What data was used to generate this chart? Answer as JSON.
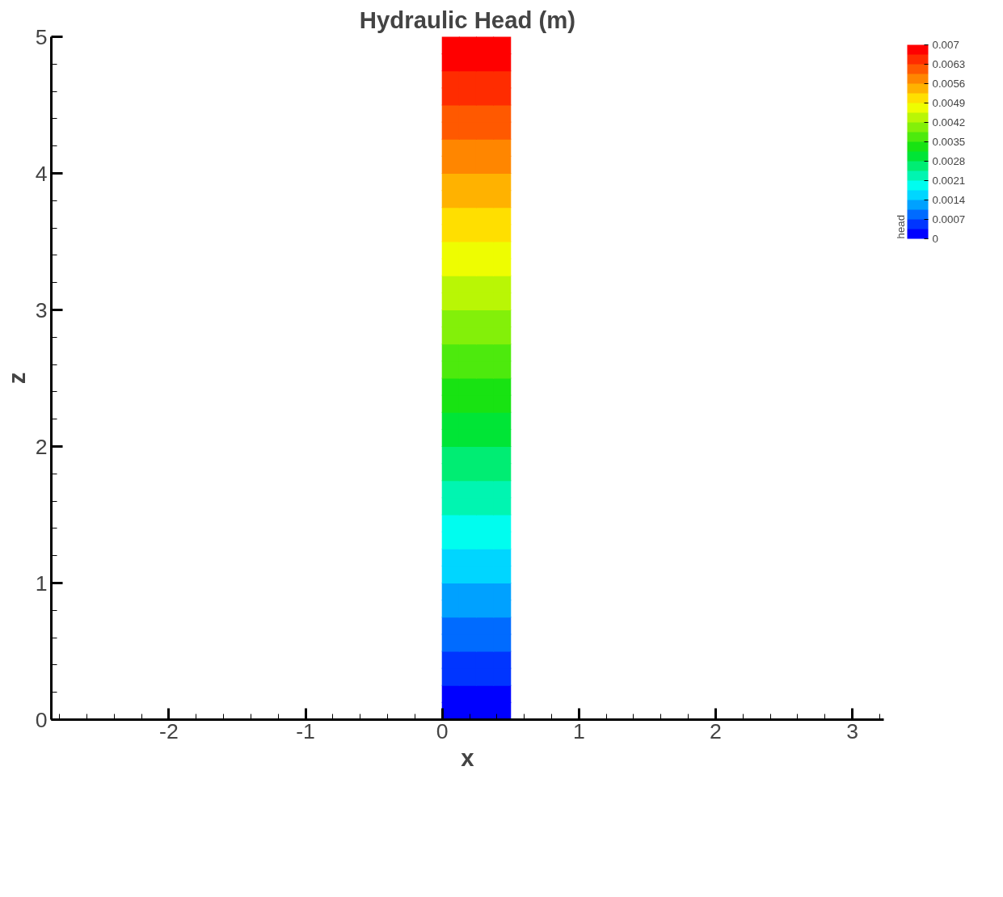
{
  "chart_data": {
    "type": "scatter",
    "marker": "square",
    "title": "Hydraulic Head (m)",
    "xlabel": "x",
    "ylabel": "z",
    "clabel": "head",
    "x": [
      0.0625,
      0.1875,
      0.3125,
      0.4375,
      0.0625,
      0.1875,
      0.3125,
      0.4375,
      0.0625,
      0.1875,
      0.3125,
      0.4375,
      0.0625,
      0.1875,
      0.3125,
      0.4375,
      0.0625,
      0.1875,
      0.3125,
      0.4375,
      0.0625,
      0.1875,
      0.3125,
      0.4375,
      0.0625,
      0.1875,
      0.3125,
      0.4375,
      0.0625,
      0.1875,
      0.3125,
      0.4375,
      0.0625,
      0.1875,
      0.3125,
      0.4375,
      0.0625,
      0.1875,
      0.3125,
      0.4375,
      0.0625,
      0.1875,
      0.3125,
      0.4375,
      0.0625,
      0.1875,
      0.3125,
      0.4375,
      0.0625,
      0.1875,
      0.3125,
      0.4375,
      0.0625,
      0.1875,
      0.3125,
      0.4375,
      0.0625,
      0.1875,
      0.3125,
      0.4375,
      0.0625,
      0.1875,
      0.3125,
      0.4375,
      0.0625,
      0.1875,
      0.3125,
      0.4375,
      0.0625,
      0.1875,
      0.3125,
      0.4375,
      0.0625,
      0.1875,
      0.3125,
      0.4375,
      0.0625,
      0.1875,
      0.3125,
      0.4375,
      0.0625,
      0.1875,
      0.3125,
      0.4375,
      0.0625,
      0.1875,
      0.3125,
      0.4375,
      0.0625,
      0.1875,
      0.3125,
      0.4375,
      0.0625,
      0.1875,
      0.3125,
      0.4375,
      0.0625,
      0.1875,
      0.3125,
      0.4375,
      0.0625,
      0.1875,
      0.3125,
      0.4375,
      0.0625,
      0.1875,
      0.3125,
      0.4375,
      0.0625,
      0.1875,
      0.3125,
      0.4375,
      0.0625,
      0.1875,
      0.3125,
      0.4375,
      0.0625,
      0.1875,
      0.3125,
      0.4375,
      0.0625,
      0.1875,
      0.3125,
      0.4375,
      0.0625,
      0.1875,
      0.3125,
      0.4375,
      0.0625,
      0.1875,
      0.3125,
      0.4375,
      0.0625,
      0.1875,
      0.3125,
      0.4375,
      0.0625,
      0.1875,
      0.3125,
      0.4375,
      0.0625,
      0.1875,
      0.3125,
      0.4375,
      0.0625,
      0.1875,
      0.3125,
      0.4375,
      0.0625,
      0.1875,
      0.3125,
      0.4375,
      0.0625,
      0.1875,
      0.3125,
      0.4375,
      0.0625,
      0.1875,
      0.3125,
      0.4375
    ],
    "values": [
      0.0625,
      0.0625,
      0.0625,
      0.0625,
      0.1875,
      0.1875,
      0.1875,
      0.1875,
      0.3125,
      0.3125,
      0.3125,
      0.3125,
      0.4375,
      0.4375,
      0.4375,
      0.4375,
      0.5625,
      0.5625,
      0.5625,
      0.5625,
      0.6875,
      0.6875,
      0.6875,
      0.6875,
      0.8125,
      0.8125,
      0.8125,
      0.8125,
      0.9375,
      0.9375,
      0.9375,
      0.9375,
      1.0625,
      1.0625,
      1.0625,
      1.0625,
      1.1875,
      1.1875,
      1.1875,
      1.1875,
      1.3125,
      1.3125,
      1.3125,
      1.3125,
      1.4375,
      1.4375,
      1.4375,
      1.4375,
      1.5625,
      1.5625,
      1.5625,
      1.5625,
      1.6875,
      1.6875,
      1.6875,
      1.6875,
      1.8125,
      1.8125,
      1.8125,
      1.8125,
      1.9375,
      1.9375,
      1.9375,
      1.9375,
      2.0625,
      2.0625,
      2.0625,
      2.0625,
      2.1875,
      2.1875,
      2.1875,
      2.1875,
      2.3125,
      2.3125,
      2.3125,
      2.3125,
      2.4375,
      2.4375,
      2.4375,
      2.4375,
      2.5625,
      2.5625,
      2.5625,
      2.5625,
      2.6875,
      2.6875,
      2.6875,
      2.6875,
      2.8125,
      2.8125,
      2.8125,
      2.8125,
      2.9375,
      2.9375,
      2.9375,
      2.9375,
      3.0625,
      3.0625,
      3.0625,
      3.0625,
      3.1875,
      3.1875,
      3.1875,
      3.1875,
      3.3125,
      3.3125,
      3.3125,
      3.3125,
      3.4375,
      3.4375,
      3.4375,
      3.4375,
      3.5625,
      3.5625,
      3.5625,
      3.5625,
      3.6875,
      3.6875,
      3.6875,
      3.6875,
      3.8125,
      3.8125,
      3.8125,
      3.8125,
      3.9375,
      3.9375,
      3.9375,
      3.9375,
      4.0625,
      4.0625,
      4.0625,
      4.0625,
      4.1875,
      4.1875,
      4.1875,
      4.1875,
      4.3125,
      4.3125,
      4.3125,
      4.3125,
      4.4375,
      4.4375,
      4.4375,
      4.4375,
      4.5625,
      4.5625,
      4.5625,
      4.5625,
      4.6875,
      4.6875,
      4.6875,
      4.6875,
      4.8125,
      4.8125,
      4.8125,
      4.8125,
      4.9375,
      4.9375,
      4.9375,
      4.9375
    ],
    "cvalues": [
      0.000175,
      0.000175,
      0.000175,
      0.000175,
      0.000175,
      0.000175,
      0.000175,
      0.000175,
      0.000525,
      0.000525,
      0.000525,
      0.000525,
      0.000525,
      0.000525,
      0.000525,
      0.000525,
      0.000875,
      0.000875,
      0.000875,
      0.000875,
      0.000875,
      0.000875,
      0.000875,
      0.000875,
      0.001225,
      0.001225,
      0.001225,
      0.001225,
      0.001225,
      0.001225,
      0.001225,
      0.001225,
      0.001575,
      0.001575,
      0.001575,
      0.001575,
      0.001575,
      0.001575,
      0.001575,
      0.001575,
      0.001925,
      0.001925,
      0.001925,
      0.001925,
      0.001925,
      0.001925,
      0.001925,
      0.001925,
      0.002275,
      0.002275,
      0.002275,
      0.002275,
      0.002275,
      0.002275,
      0.002275,
      0.002275,
      0.002625,
      0.002625,
      0.002625,
      0.002625,
      0.002625,
      0.002625,
      0.002625,
      0.002625,
      0.002975,
      0.002975,
      0.002975,
      0.002975,
      0.002975,
      0.002975,
      0.002975,
      0.002975,
      0.003325,
      0.003325,
      0.003325,
      0.003325,
      0.003325,
      0.003325,
      0.003325,
      0.003325,
      0.003675,
      0.003675,
      0.003675,
      0.003675,
      0.003675,
      0.003675,
      0.003675,
      0.003675,
      0.004025,
      0.004025,
      0.004025,
      0.004025,
      0.004025,
      0.004025,
      0.004025,
      0.004025,
      0.004375,
      0.004375,
      0.004375,
      0.004375,
      0.004375,
      0.004375,
      0.004375,
      0.004375,
      0.004725,
      0.004725,
      0.004725,
      0.004725,
      0.004725,
      0.004725,
      0.004725,
      0.004725,
      0.005075,
      0.005075,
      0.005075,
      0.005075,
      0.005075,
      0.005075,
      0.005075,
      0.005075,
      0.005425,
      0.005425,
      0.005425,
      0.005425,
      0.005425,
      0.005425,
      0.005425,
      0.005425,
      0.005775,
      0.005775,
      0.005775,
      0.005775,
      0.005775,
      0.005775,
      0.005775,
      0.005775,
      0.006125,
      0.006125,
      0.006125,
      0.006125,
      0.006125,
      0.006125,
      0.006125,
      0.006125,
      0.006475,
      0.006475,
      0.006475,
      0.006475,
      0.006475,
      0.006475,
      0.006475,
      0.006475,
      0.006825,
      0.006825,
      0.006825,
      0.006825,
      0.006825,
      0.006825,
      0.006825,
      0.006825
    ],
    "clim": [
      0,
      0.007
    ],
    "cticks": [
      0,
      0.0007,
      0.0014,
      0.0021,
      0.0028,
      0.0035,
      0.0042,
      0.0049,
      0.0056,
      0.0063,
      0.007
    ],
    "xlim": [
      -2.86,
      3.23
    ],
    "ylim": [
      0,
      5
    ],
    "xticks": [
      -2,
      -1,
      0,
      1,
      2,
      3
    ],
    "yticks": [
      0,
      1,
      2,
      3,
      4,
      5
    ],
    "grid": false
  }
}
